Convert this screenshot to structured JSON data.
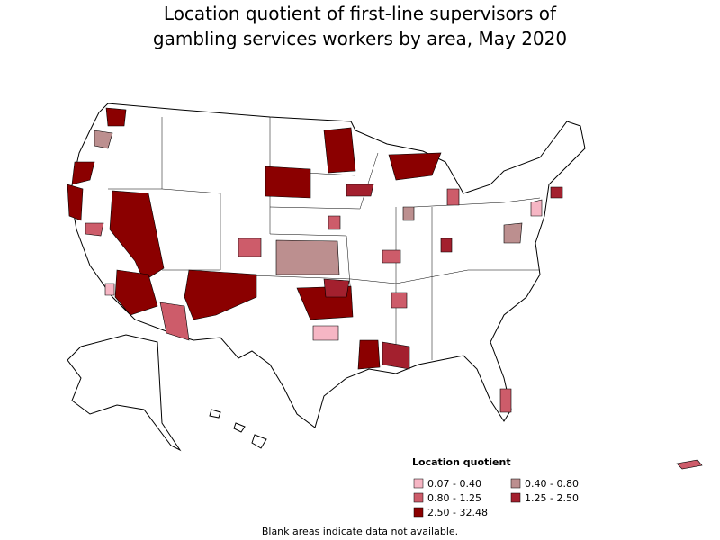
{
  "title": [
    "Location quotient of first-line supervisors of",
    "gambling services workers by area, May 2020"
  ],
  "legend": {
    "title": "Location quotient",
    "items": [
      {
        "label": "0.07 - 0.40",
        "color": "#f6b6c4"
      },
      {
        "label": "0.40 - 0.80",
        "color": "#bc8f8f"
      },
      {
        "label": "0.80 - 1.25",
        "color": "#cd5c6a"
      },
      {
        "label": "1.25 - 2.50",
        "color": "#a3202e"
      },
      {
        "label": "2.50 - 32.48",
        "color": "#8b0000"
      }
    ]
  },
  "footnote": "Blank areas indicate data not available."
}
